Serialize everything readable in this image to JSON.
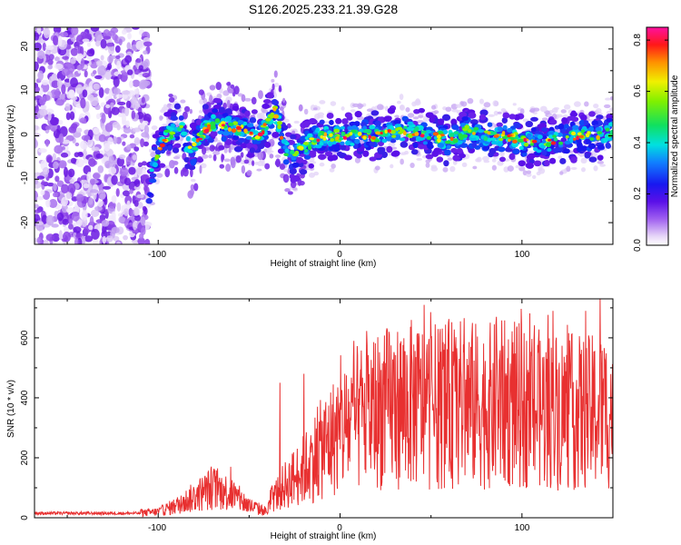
{
  "title": "S126.2025.233.21.39.G28",
  "chart_data": [
    {
      "type": "heatmap",
      "name": "spectrogram",
      "xlabel": "Height of straight line (km)",
      "ylabel": "Frequency (Hz)",
      "xlim": [
        -168,
        150
      ],
      "ylim": [
        -25,
        25
      ],
      "xticks": [
        -100,
        0,
        100
      ],
      "yticks": [
        -20,
        -10,
        0,
        10,
        20
      ],
      "xtick_labels": [
        "-100",
        "0",
        "100"
      ],
      "ytick_labels": [
        "-20",
        "-10",
        "0",
        "10",
        "20"
      ],
      "colorbar": {
        "label": "Normalized spectral amplitude",
        "range": [
          0,
          0.85
        ],
        "ticks": [
          "0.0",
          "0.2",
          "0.4",
          "0.6",
          "0.8"
        ],
        "tick_values": [
          0,
          0.2,
          0.4,
          0.6,
          0.8
        ]
      },
      "ridge_points": [
        {
          "x": -105,
          "y": -12
        },
        {
          "x": -102,
          "y": -5
        },
        {
          "x": -95,
          "y": 0
        },
        {
          "x": -88,
          "y": 2
        },
        {
          "x": -82,
          "y": -4
        },
        {
          "x": -75,
          "y": 1
        },
        {
          "x": -68,
          "y": 3
        },
        {
          "x": -60,
          "y": 2
        },
        {
          "x": -50,
          "y": 1
        },
        {
          "x": -44,
          "y": 0
        },
        {
          "x": -40,
          "y": 3
        },
        {
          "x": -36,
          "y": 6
        },
        {
          "x": -30,
          "y": -3
        },
        {
          "x": -25,
          "y": -5
        },
        {
          "x": -18,
          "y": -2
        },
        {
          "x": -10,
          "y": 0
        },
        {
          "x": 0,
          "y": 0
        },
        {
          "x": 10,
          "y": 0
        },
        {
          "x": 20,
          "y": 0
        },
        {
          "x": 30,
          "y": 1
        },
        {
          "x": 40,
          "y": 1
        },
        {
          "x": 50,
          "y": 0
        },
        {
          "x": 60,
          "y": -1
        },
        {
          "x": 70,
          "y": 1
        },
        {
          "x": 80,
          "y": 0
        },
        {
          "x": 90,
          "y": 0
        },
        {
          "x": 100,
          "y": -1
        },
        {
          "x": 110,
          "y": -2
        },
        {
          "x": 120,
          "y": -1
        },
        {
          "x": 130,
          "y": 0
        },
        {
          "x": 140,
          "y": 0
        },
        {
          "x": 150,
          "y": 1
        }
      ],
      "noise_region_x": [
        -168,
        -105
      ]
    },
    {
      "type": "line",
      "name": "snr",
      "xlabel": "Height of straight line (km)",
      "ylabel": "SNR (10 * v/v)",
      "xlim": [
        -168,
        150
      ],
      "ylim": [
        0,
        730
      ],
      "xticks": [
        -100,
        0,
        100
      ],
      "yticks": [
        0,
        200,
        400,
        600
      ],
      "xtick_labels": [
        "-100",
        "0",
        "100"
      ],
      "ytick_labels": [
        "0",
        "200",
        "400",
        "600"
      ],
      "color": "#e83030",
      "envelope": {
        "x": [
          -168,
          -110,
          -100,
          -90,
          -80,
          -70,
          -60,
          -50,
          -40,
          -38,
          -30,
          -20,
          -10,
          0,
          10,
          20,
          30,
          40,
          50,
          60,
          70,
          80,
          90,
          100,
          110,
          120,
          130,
          140,
          150
        ],
        "y": [
          15,
          15,
          20,
          40,
          70,
          100,
          80,
          40,
          20,
          60,
          110,
          160,
          230,
          290,
          330,
          360,
          370,
          380,
          370,
          380,
          380,
          370,
          380,
          370,
          360,
          360,
          350,
          350,
          360
        ]
      },
      "peaks": [
        {
          "x": 143,
          "y": 730
        },
        {
          "x": 135,
          "y": 690
        },
        {
          "x": 117,
          "y": 690
        },
        {
          "x": 86,
          "y": 670
        },
        {
          "x": 50,
          "y": 600
        },
        {
          "x": 57,
          "y": 560
        },
        {
          "x": -20,
          "y": 480
        },
        {
          "x": -33,
          "y": 450
        },
        {
          "x": -60,
          "y": 170
        }
      ]
    }
  ]
}
